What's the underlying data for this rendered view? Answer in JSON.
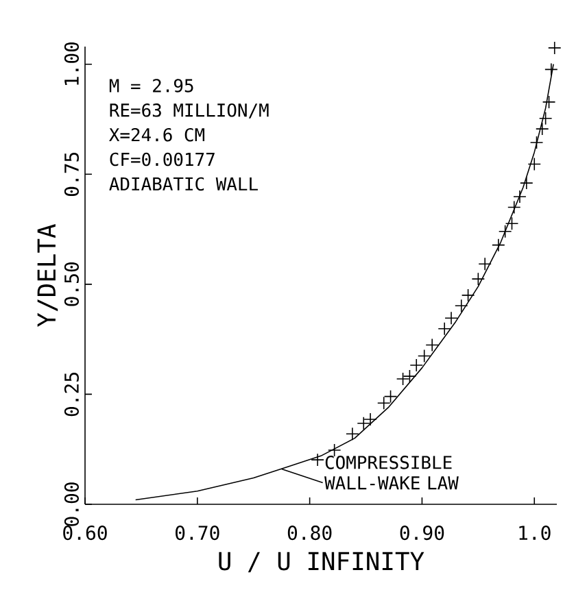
{
  "chart_data": {
    "type": "scatter",
    "xlabel": "U / U INFINITY",
    "ylabel": "Y/DELTA",
    "xlim": [
      0.6,
      1.02
    ],
    "ylim": [
      0,
      1.04
    ],
    "xticks": [
      {
        "value": 0.6,
        "label": "0.60"
      },
      {
        "value": 0.7,
        "label": "0.70"
      },
      {
        "value": 0.8,
        "label": "0.80"
      },
      {
        "value": 0.9,
        "label": "0.90"
      },
      {
        "value": 1.0,
        "label": "1.0"
      }
    ],
    "yticks": [
      {
        "value": 0,
        "label": "0.00"
      },
      {
        "value": 0.25,
        "label": "0.25"
      },
      {
        "value": 0.5,
        "label": "0.50"
      },
      {
        "value": 0.75,
        "label": "0.75"
      },
      {
        "value": 1.0,
        "label": "1.00"
      }
    ],
    "grid": false,
    "legend": false,
    "series": [
      {
        "marker": "cross",
        "color": "#000000",
        "x": [
          1.018,
          1.015,
          1.013,
          1.01,
          1.007,
          1.002,
          1.0,
          0.993,
          0.987,
          0.982,
          0.98,
          0.974,
          0.968,
          0.956,
          0.95,
          0.941,
          0.935,
          0.926,
          0.92,
          0.909,
          0.902,
          0.895,
          0.889,
          0.883,
          0.872,
          0.866,
          0.854,
          0.848,
          0.838,
          0.822,
          0.807
        ],
        "values": [
          1.037,
          0.988,
          0.914,
          0.877,
          0.853,
          0.822,
          0.773,
          0.73,
          0.699,
          0.675,
          0.638,
          0.62,
          0.589,
          0.546,
          0.512,
          0.475,
          0.451,
          0.423,
          0.399,
          0.362,
          0.337,
          0.316,
          0.291,
          0.285,
          0.245,
          0.23,
          0.193,
          0.184,
          0.16,
          0.123,
          0.101
        ]
      },
      {
        "type": "line",
        "marker": "none",
        "line_style": "solid",
        "color": "#000000",
        "x": [
          0.645,
          0.7,
          0.75,
          0.78,
          0.81,
          0.84,
          0.87,
          0.9,
          0.93,
          0.95,
          0.97,
          0.99,
          1.0,
          1.01,
          1.017
        ],
        "values": [
          0.01,
          0.03,
          0.06,
          0.085,
          0.11,
          0.15,
          0.22,
          0.31,
          0.415,
          0.495,
          0.595,
          0.72,
          0.8,
          0.9,
          1.0
        ]
      }
    ],
    "annotations": [
      "M = 2.95",
      "RE=63 MILLION/M",
      "X=24.6 CM",
      "CF=0.00177",
      "ADIABATIC WALL",
      {
        "text": "COMPRESSIBLE WALL-WAKE LAW",
        "x": 0.775,
        "y": 0.08
      }
    ]
  }
}
